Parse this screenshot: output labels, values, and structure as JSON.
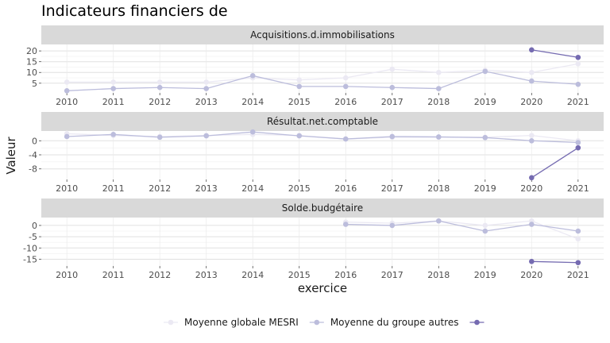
{
  "chart_data": {
    "type": "line",
    "title": "Indicateurs financiers de",
    "xlabel": "exercice",
    "ylabel": "Valeur",
    "x": [
      2010,
      2011,
      2012,
      2013,
      2014,
      2015,
      2016,
      2017,
      2018,
      2019,
      2020,
      2021
    ],
    "legend": {
      "placement": "bottom"
    },
    "grid": true,
    "series_styles": [
      {
        "name": "Moyenne globale MESRI",
        "color": "#ebe9f3"
      },
      {
        "name": "Moyenne du groupe autres",
        "color": "#bcbddc"
      },
      {
        "name": "",
        "color": "#756bb1"
      }
    ],
    "panels": [
      {
        "facet": "Acquisitions.d.immobilisations",
        "ylim": [
          0.5,
          23
        ],
        "yticks": [
          5,
          10,
          15,
          20
        ],
        "series": [
          {
            "name": "Moyenne globale MESRI",
            "values": [
              5.5,
              5.5,
              5.5,
              5.5,
              7.5,
              6.5,
              7.5,
              11.5,
              10,
              11,
              10,
              14
            ]
          },
          {
            "name": "Moyenne du groupe autres",
            "values": [
              1.5,
              2.5,
              3,
              2.5,
              8.5,
              3.5,
              3.5,
              3,
              2.5,
              10.5,
              6,
              4.5
            ]
          },
          {
            "name": "",
            "values": [
              null,
              null,
              null,
              null,
              null,
              null,
              null,
              null,
              null,
              null,
              20.5,
              17
            ]
          }
        ]
      },
      {
        "facet": "Résultat.net.comptable",
        "ylim": [
          -11,
          3
        ],
        "yticks": [
          0,
          -4,
          -8
        ],
        "series": [
          {
            "name": "Moyenne globale MESRI",
            "values": [
              2,
              1.5,
              1.2,
              1.5,
              1.8,
              1.5,
              0.5,
              1,
              1,
              1,
              1.5,
              0
            ]
          },
          {
            "name": "Moyenne du groupe autres",
            "values": [
              1.2,
              1.8,
              1,
              1.4,
              2.5,
              1.4,
              0.5,
              1.2,
              1.1,
              0.9,
              0,
              -0.5
            ]
          },
          {
            "name": "",
            "values": [
              null,
              null,
              null,
              null,
              null,
              null,
              null,
              null,
              null,
              null,
              -10.5,
              -2
            ]
          }
        ]
      },
      {
        "facet": "Solde.budgétaire",
        "ylim": [
          -18,
          3.5
        ],
        "yticks": [
          0,
          -5,
          -10,
          -15
        ],
        "series": [
          {
            "name": "Moyenne globale MESRI",
            "values": [
              null,
              null,
              null,
              null,
              null,
              null,
              1.5,
              1,
              2,
              0,
              2,
              -6
            ]
          },
          {
            "name": "Moyenne du groupe autres",
            "values": [
              null,
              null,
              null,
              null,
              null,
              null,
              0.5,
              0,
              2,
              -2.5,
              0.5,
              -2.5
            ]
          },
          {
            "name": "",
            "values": [
              null,
              null,
              null,
              null,
              null,
              null,
              null,
              null,
              null,
              null,
              -16,
              -16.5
            ]
          }
        ]
      }
    ]
  }
}
